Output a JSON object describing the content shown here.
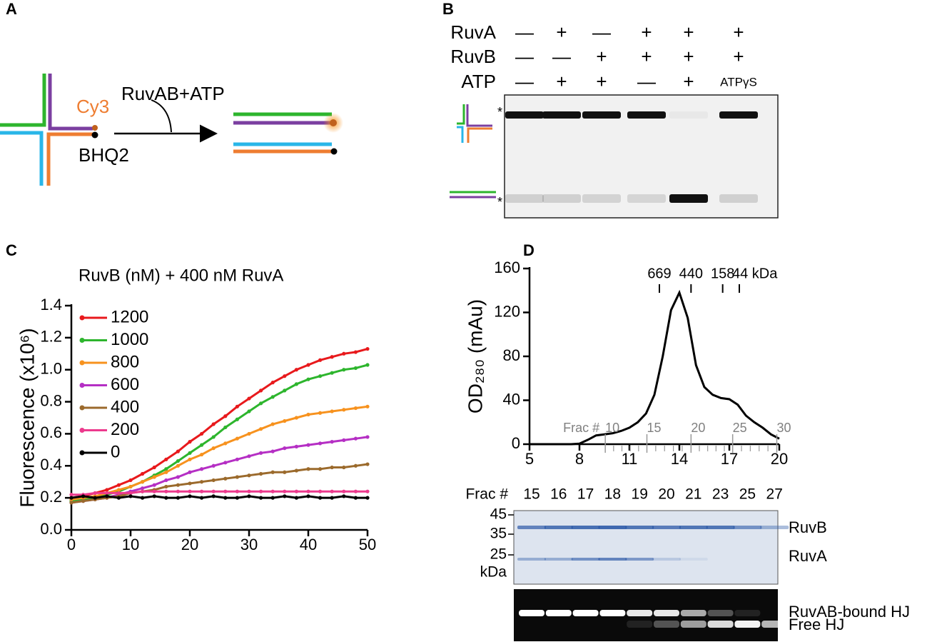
{
  "panel_labels": [
    "A",
    "B",
    "C",
    "D"
  ],
  "panel_a": {
    "cy3": "Cy3",
    "enzyme": "RuvAB+ATP",
    "quencher": "BHQ2"
  },
  "panel_b": {
    "rows": [
      {
        "label": "RuvA",
        "cells": [
          "—",
          "+",
          "—",
          "+",
          "+",
          "+"
        ]
      },
      {
        "label": "RuvB",
        "cells": [
          "—",
          "—",
          "+",
          "+",
          "+",
          "+"
        ]
      },
      {
        "label": "ATP",
        "cells": [
          "—",
          "+",
          "+",
          "—",
          "+",
          "ATPγS"
        ]
      }
    ],
    "markers": [
      "*",
      "*"
    ]
  },
  "chart_data": [
    {
      "type": "line",
      "title": "RuvB (nM) + 400 nM RuvA",
      "ylabel": "Fluorescence (x10⁶)",
      "x": [
        0,
        2,
        4,
        6,
        8,
        10,
        12,
        14,
        16,
        18,
        20,
        22,
        24,
        26,
        28,
        30,
        32,
        34,
        36,
        38,
        40,
        42,
        44,
        46,
        48,
        50
      ],
      "series": [
        {
          "name": "1200",
          "color": "#e8191c",
          "values": [
            0.2,
            0.21,
            0.23,
            0.25,
            0.28,
            0.31,
            0.35,
            0.39,
            0.44,
            0.49,
            0.55,
            0.6,
            0.66,
            0.71,
            0.77,
            0.82,
            0.87,
            0.92,
            0.96,
            1.0,
            1.03,
            1.06,
            1.08,
            1.1,
            1.11,
            1.13
          ]
        },
        {
          "name": "1000",
          "color": "#2db52d",
          "values": [
            0.18,
            0.19,
            0.2,
            0.22,
            0.24,
            0.27,
            0.3,
            0.34,
            0.38,
            0.43,
            0.48,
            0.53,
            0.58,
            0.64,
            0.69,
            0.74,
            0.79,
            0.83,
            0.87,
            0.91,
            0.94,
            0.96,
            0.98,
            1.0,
            1.01,
            1.03
          ]
        },
        {
          "name": "800",
          "color": "#f7921e",
          "values": [
            0.19,
            0.2,
            0.21,
            0.23,
            0.25,
            0.27,
            0.3,
            0.33,
            0.36,
            0.4,
            0.44,
            0.47,
            0.51,
            0.54,
            0.57,
            0.6,
            0.63,
            0.66,
            0.68,
            0.7,
            0.72,
            0.73,
            0.74,
            0.75,
            0.76,
            0.77
          ]
        },
        {
          "name": "600",
          "color": "#b52fc4",
          "values": [
            0.17,
            0.18,
            0.19,
            0.2,
            0.22,
            0.24,
            0.26,
            0.28,
            0.31,
            0.33,
            0.36,
            0.38,
            0.4,
            0.42,
            0.44,
            0.46,
            0.48,
            0.49,
            0.51,
            0.52,
            0.53,
            0.54,
            0.55,
            0.56,
            0.57,
            0.58
          ]
        },
        {
          "name": "400",
          "color": "#9b6a2c",
          "values": [
            0.17,
            0.18,
            0.19,
            0.2,
            0.21,
            0.23,
            0.24,
            0.25,
            0.27,
            0.28,
            0.29,
            0.3,
            0.31,
            0.32,
            0.33,
            0.34,
            0.35,
            0.36,
            0.36,
            0.37,
            0.38,
            0.38,
            0.39,
            0.39,
            0.4,
            0.41
          ]
        },
        {
          "name": "200",
          "color": "#ec3a8d",
          "values": [
            0.22,
            0.22,
            0.23,
            0.23,
            0.23,
            0.23,
            0.24,
            0.24,
            0.24,
            0.24,
            0.24,
            0.24,
            0.24,
            0.24,
            0.24,
            0.24,
            0.24,
            0.24,
            0.24,
            0.24,
            0.24,
            0.24,
            0.24,
            0.24,
            0.24,
            0.24
          ]
        },
        {
          "name": "0",
          "color": "#000000",
          "values": [
            0.2,
            0.21,
            0.2,
            0.21,
            0.2,
            0.21,
            0.2,
            0.21,
            0.2,
            0.2,
            0.21,
            0.2,
            0.21,
            0.2,
            0.2,
            0.21,
            0.2,
            0.2,
            0.21,
            0.2,
            0.21,
            0.2,
            0.2,
            0.21,
            0.2,
            0.2
          ]
        }
      ],
      "xlim": [
        0,
        50
      ],
      "ylim": [
        0,
        1.4
      ],
      "xticks": [
        0,
        10,
        20,
        30,
        40,
        50
      ],
      "yticks": [
        {
          "value": 0,
          "label": "0.0"
        },
        0.2,
        0.4,
        0.6,
        0.8,
        {
          "value": 1,
          "label": "1.0"
        },
        1.2,
        1.4
      ],
      "legend": "upper left"
    },
    {
      "type": "line",
      "ylabel": "OD₂₈₀ (mAu)",
      "x": [
        5,
        5.5,
        6,
        6.5,
        7,
        7.5,
        8,
        8.5,
        9,
        9.5,
        10,
        10.5,
        11,
        11.5,
        12,
        12.5,
        13,
        13.5,
        14,
        14.5,
        15,
        15.5,
        16,
        16.5,
        17,
        17.5,
        18,
        18.5,
        19,
        19.5,
        20
      ],
      "series": [
        {
          "color": "#000000",
          "values": [
            0,
            0,
            0,
            0,
            0,
            0,
            0.5,
            4,
            8,
            9,
            10,
            12,
            15,
            20,
            28,
            45,
            80,
            122,
            138,
            115,
            72,
            52,
            45,
            42,
            41,
            36,
            26,
            20,
            15,
            9,
            5
          ]
        }
      ],
      "xlim": [
        5,
        20
      ],
      "ylim": [
        0,
        160
      ],
      "xticks": [
        5,
        8,
        11,
        14,
        17,
        20
      ],
      "yticks": [
        0,
        40,
        80,
        120,
        160
      ],
      "annotations": [
        {
          "x": 12.8,
          "label": "669"
        },
        {
          "x": 14.7,
          "label": "440"
        },
        {
          "x": 16.6,
          "label": "158"
        },
        {
          "x": 17.6,
          "label": "44 kDa"
        }
      ],
      "frac_axis": {
        "label": "Frac #",
        "ticks": [
          {
            "value": 9.55,
            "label": "10"
          },
          {
            "value": 12.05,
            "label": "15"
          },
          {
            "value": 14.7,
            "label": "20"
          },
          {
            "value": 17.2,
            "label": "25"
          },
          {
            "value": 19.85,
            "label": "30"
          }
        ]
      }
    }
  ],
  "panel_d_gel": {
    "lane_header": "Frac #",
    "lanes": [
      "15",
      "16",
      "17",
      "18",
      "19",
      "20",
      "21",
      "23",
      "25",
      "27"
    ],
    "mw_labels": [
      "45",
      "35",
      "25"
    ],
    "mw_unit": "kDa",
    "band_labels": [
      "RuvB",
      "RuvA"
    ],
    "hj_labels": [
      "RuvAB-bound HJ",
      "Free HJ"
    ]
  }
}
